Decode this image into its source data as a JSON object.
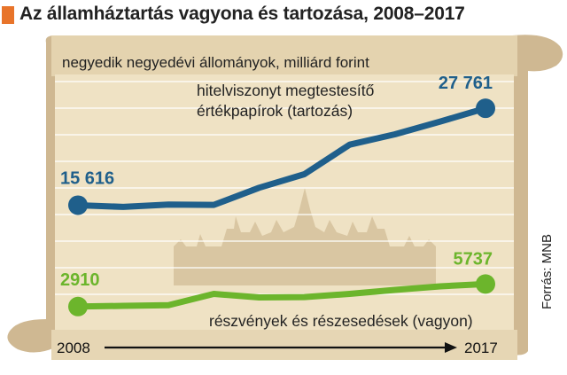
{
  "title": "Az államháztartás vagyona és tartozása, 2008–2017",
  "subtitle": "negyedik negyedévi állományok, milliárd forint",
  "source": "Forrás: MNB",
  "colors": {
    "accent": "#e8742a",
    "debt": "#1f5f8b",
    "assets": "#6cb52c",
    "parchment": "#efe2c4",
    "scroll": "#cfb892",
    "silhouette": "#d9c6a2"
  },
  "chart_data": {
    "type": "line",
    "x": [
      2008,
      2009,
      2010,
      2011,
      2012,
      2013,
      2014,
      2015,
      2016,
      2017
    ],
    "x_labels": [
      "2008",
      "2017"
    ],
    "ylim": [
      0,
      32000
    ],
    "grid": true,
    "series": [
      {
        "name": "hitelviszonyt megtestesítő értékpapírok (tartozás)",
        "name_lines": [
          "hitelviszonyt megtestesítő",
          "értékpapírok (tartozás)"
        ],
        "color": "#1f5f8b",
        "values": [
          15616,
          15400,
          15700,
          15650,
          17800,
          19500,
          23200,
          24500,
          26100,
          27761
        ],
        "start_label": "15 616",
        "end_label": "27 761"
      },
      {
        "name": "részvények és részesedések (vagyon)",
        "color": "#6cb52c",
        "values": [
          2910,
          3000,
          3080,
          4500,
          4050,
          4100,
          4500,
          5000,
          5450,
          5737
        ],
        "start_label": "2910",
        "end_label": "5737"
      }
    ]
  }
}
